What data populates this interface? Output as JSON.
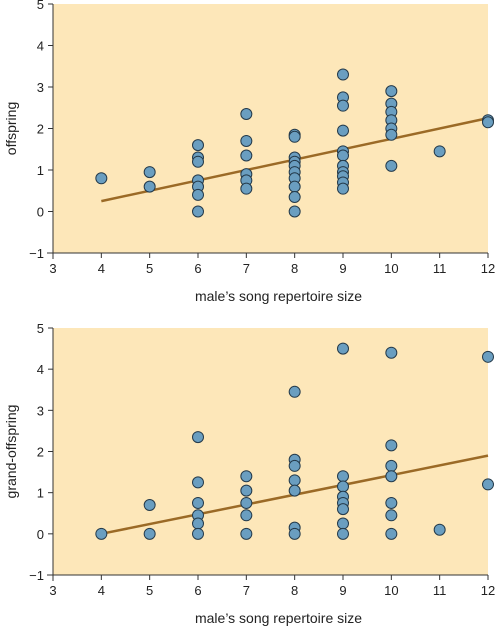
{
  "colors": {
    "panel_bg": "#fde7b9",
    "point_fill": "#6a9ec0",
    "point_stroke": "#243a4a",
    "trend_line": "#9b6a26",
    "axis": "#333333"
  },
  "chart_data": [
    {
      "type": "scatter",
      "xlabel": "male’s song repertoire size",
      "ylabel": "offspring",
      "xlim": [
        3,
        12
      ],
      "ylim": [
        -1,
        5
      ],
      "xticks": [
        3,
        4,
        5,
        6,
        7,
        8,
        9,
        10,
        11,
        12
      ],
      "yticks": [
        -1,
        0,
        1,
        2,
        3,
        4,
        5
      ],
      "grid": false,
      "legend": "none",
      "trend": {
        "x": [
          4,
          12
        ],
        "y": [
          0.25,
          2.25
        ]
      },
      "points": [
        [
          4,
          0.8
        ],
        [
          5,
          0.95
        ],
        [
          5,
          0.6
        ],
        [
          6,
          1.6
        ],
        [
          6,
          1.3
        ],
        [
          6,
          1.2
        ],
        [
          6,
          0.75
        ],
        [
          6,
          0.6
        ],
        [
          6,
          0.4
        ],
        [
          6,
          0.0
        ],
        [
          7,
          2.35
        ],
        [
          7,
          1.7
        ],
        [
          7,
          1.35
        ],
        [
          7,
          0.9
        ],
        [
          7,
          0.75
        ],
        [
          7,
          0.55
        ],
        [
          8,
          1.85
        ],
        [
          8,
          1.8
        ],
        [
          8,
          1.3
        ],
        [
          8,
          1.2
        ],
        [
          8,
          1.1
        ],
        [
          8,
          0.95
        ],
        [
          8,
          0.8
        ],
        [
          8,
          0.6
        ],
        [
          8,
          0.35
        ],
        [
          8,
          0.0
        ],
        [
          9,
          3.3
        ],
        [
          9,
          2.75
        ],
        [
          9,
          2.55
        ],
        [
          9,
          1.95
        ],
        [
          9,
          1.45
        ],
        [
          9,
          1.35
        ],
        [
          9,
          1.1
        ],
        [
          9,
          0.95
        ],
        [
          9,
          0.85
        ],
        [
          9,
          0.7
        ],
        [
          9,
          0.55
        ],
        [
          10,
          2.9
        ],
        [
          10,
          2.6
        ],
        [
          10,
          2.4
        ],
        [
          10,
          2.2
        ],
        [
          10,
          2.0
        ],
        [
          10,
          1.85
        ],
        [
          10,
          1.1
        ],
        [
          11,
          1.45
        ],
        [
          12,
          2.2
        ],
        [
          12,
          2.15
        ]
      ]
    },
    {
      "type": "scatter",
      "xlabel": "male’s song repertoire size",
      "ylabel": "grand-offspring",
      "xlim": [
        3,
        12
      ],
      "ylim": [
        -1,
        5
      ],
      "xticks": [
        3,
        4,
        5,
        6,
        7,
        8,
        9,
        10,
        11,
        12
      ],
      "yticks": [
        -1,
        0,
        1,
        2,
        3,
        4,
        5
      ],
      "grid": false,
      "legend": "none",
      "trend": {
        "x": [
          4,
          12
        ],
        "y": [
          0.0,
          1.9
        ]
      },
      "points": [
        [
          4,
          0.0
        ],
        [
          5,
          0.7
        ],
        [
          5,
          0.0
        ],
        [
          6,
          2.35
        ],
        [
          6,
          1.25
        ],
        [
          6,
          0.75
        ],
        [
          6,
          0.45
        ],
        [
          6,
          0.25
        ],
        [
          6,
          0.0
        ],
        [
          7,
          1.4
        ],
        [
          7,
          1.05
        ],
        [
          7,
          0.75
        ],
        [
          7,
          0.45
        ],
        [
          7,
          0.0
        ],
        [
          8,
          3.45
        ],
        [
          8,
          1.8
        ],
        [
          8,
          1.65
        ],
        [
          8,
          1.3
        ],
        [
          8,
          1.05
        ],
        [
          8,
          0.15
        ],
        [
          8,
          0.0
        ],
        [
          9,
          4.5
        ],
        [
          9,
          1.4
        ],
        [
          9,
          1.15
        ],
        [
          9,
          0.9
        ],
        [
          9,
          0.75
        ],
        [
          9,
          0.6
        ],
        [
          9,
          0.25
        ],
        [
          9,
          0.0
        ],
        [
          10,
          4.4
        ],
        [
          10,
          2.15
        ],
        [
          10,
          1.65
        ],
        [
          10,
          1.4
        ],
        [
          10,
          0.75
        ],
        [
          10,
          0.45
        ],
        [
          10,
          0.0
        ],
        [
          11,
          0.1
        ],
        [
          12,
          4.3
        ],
        [
          12,
          1.2
        ]
      ]
    }
  ]
}
